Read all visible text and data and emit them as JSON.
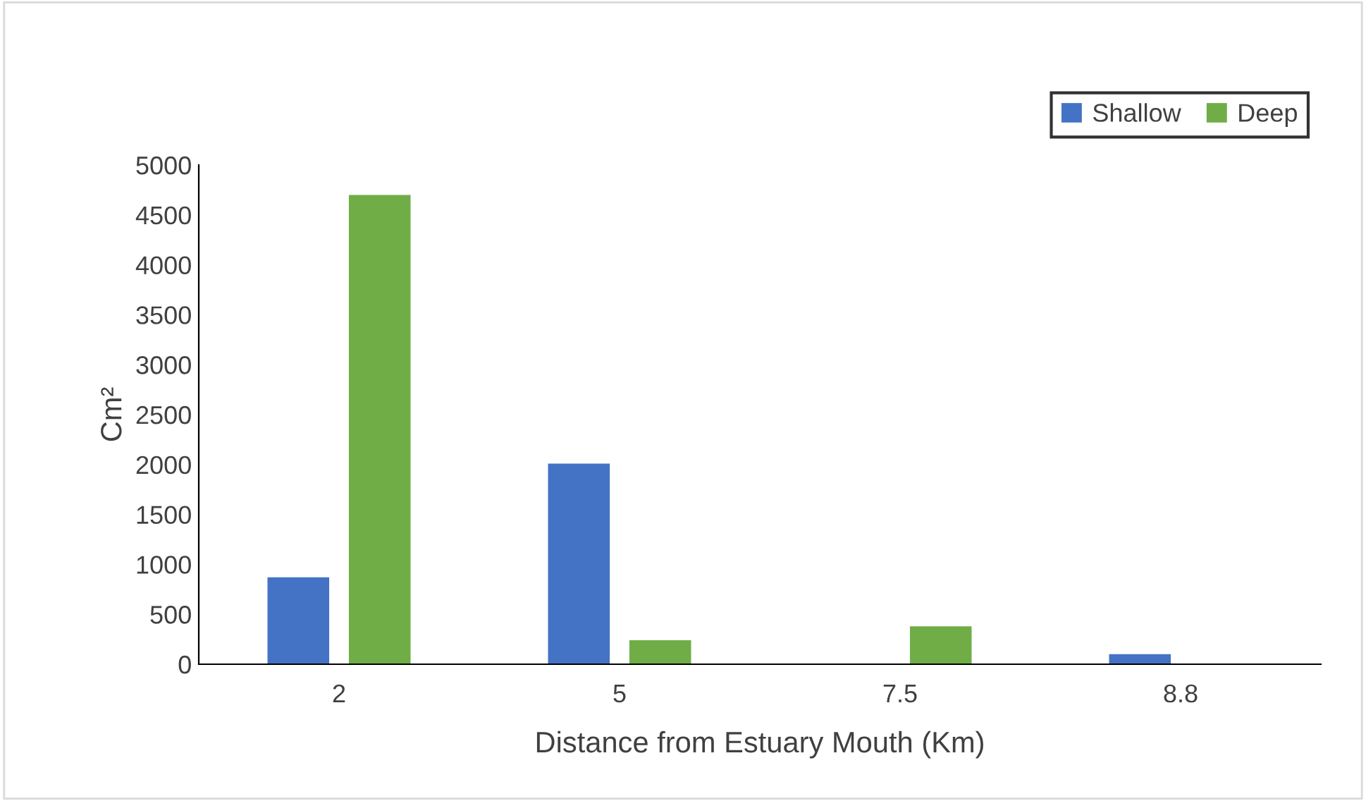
{
  "chart_data": {
    "type": "bar",
    "xlabel": "Distance from Estuary Mouth (Km)",
    "ylabel": "Cm²",
    "categories": [
      "2",
      "5",
      "7.5",
      "8.8"
    ],
    "series": [
      {
        "name": "Shallow",
        "color": "#4472c4",
        "values": [
          870,
          2010,
          0,
          100
        ]
      },
      {
        "name": "Deep",
        "color": "#70ad47",
        "values": [
          4700,
          240,
          380,
          0
        ]
      }
    ],
    "ylim": [
      0,
      5000
    ],
    "yticks": [
      0,
      500,
      1000,
      1500,
      2000,
      2500,
      3000,
      3500,
      4000,
      4500,
      5000
    ],
    "grid": false,
    "legend": "top right"
  }
}
